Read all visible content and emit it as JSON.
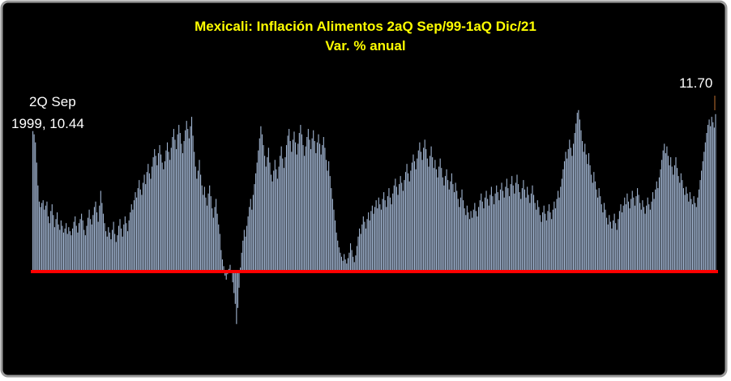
{
  "chart_data": {
    "type": "bar",
    "title": "Mexicali: Inflación Alimentos 2aQ Sep/99-1aQ Dic/21",
    "subtitle": "Var. % anual",
    "annotations": [
      "2Q Sep",
      "1999, 10.44",
      "11.70"
    ],
    "color": "#9fb3cf",
    "zero_line_color": "#ff0000",
    "values": [
      10.44,
      10.2,
      9.6,
      8.1,
      6.4,
      5.2,
      4.8,
      5.1,
      5.3,
      4.6,
      4.9,
      5.2,
      4.1,
      3.6,
      4.5,
      5.0,
      4.2,
      3.3,
      3.9,
      4.4,
      3.5,
      3.1,
      3.8,
      3.4,
      2.9,
      3.2,
      3.6,
      2.8,
      3.3,
      3.0,
      2.7,
      3.2,
      3.7,
      4.1,
      3.4,
      2.9,
      3.6,
      3.9,
      4.3,
      3.8,
      3.1,
      2.7,
      3.4,
      4.0,
      4.6,
      3.9,
      3.5,
      4.2,
      4.8,
      5.2,
      4.4,
      3.7,
      4.9,
      6.0,
      5.1,
      4.3,
      3.6,
      3.0,
      2.6,
      3.3,
      2.9,
      2.4,
      3.1,
      3.7,
      2.8,
      2.2,
      2.7,
      3.4,
      3.9,
      3.2,
      2.6,
      3.5,
      4.1,
      3.6,
      3.0,
      3.8,
      4.4,
      5.0,
      4.6,
      5.3,
      5.9,
      5.5,
      6.2,
      6.8,
      6.1,
      5.7,
      6.6,
      7.2,
      6.5,
      7.4,
      8.0,
      7.3,
      6.9,
      7.8,
      8.5,
      9.1,
      8.6,
      7.9,
      8.8,
      9.4,
      8.7,
      8.1,
      7.6,
      8.2,
      9.0,
      9.6,
      8.9,
      8.3,
      9.2,
      10.0,
      10.6,
      9.8,
      9.1,
      10.2,
      10.9,
      10.3,
      9.5,
      8.8,
      9.7,
      10.5,
      11.2,
      10.6,
      9.9,
      10.8,
      11.5,
      10.1,
      8.9,
      7.8,
      6.9,
      7.5,
      8.3,
      7.2,
      6.4,
      5.7,
      6.3,
      5.5,
      4.9,
      5.8,
      6.4,
      5.6,
      4.7,
      4.0,
      4.8,
      5.4,
      4.3,
      3.5,
      2.8,
      1.6,
      0.9,
      0.4,
      -0.3,
      -0.6,
      -0.2,
      0.2,
      0.5,
      0.1,
      -0.8,
      -1.6,
      -2.4,
      -3.9,
      -2.7,
      -1.2,
      0.3,
      1.4,
      2.3,
      3.1,
      2.6,
      3.4,
      4.1,
      4.8,
      5.4,
      4.6,
      5.7,
      6.5,
      7.3,
      8.1,
      9.0,
      9.9,
      10.8,
      10.2,
      9.4,
      8.6,
      7.8,
      8.5,
      9.2,
      8.1,
      7.2,
      6.7,
      7.5,
      8.3,
      7.6,
      6.9,
      7.8,
      8.6,
      9.3,
      8.4,
      7.7,
      8.5,
      9.4,
      10.1,
      10.6,
      9.7,
      8.9,
      9.8,
      10.4,
      9.6,
      8.7,
      9.5,
      10.3,
      10.9,
      10.2,
      9.4,
      8.6,
      9.3,
      10.0,
      10.6,
      9.8,
      9.1,
      9.9,
      10.5,
      9.7,
      8.8,
      9.6,
      10.2,
      9.5,
      8.7,
      9.4,
      10.0,
      9.2,
      8.3,
      7.5,
      8.2,
      7.1,
      6.2,
      5.4,
      4.6,
      3.8,
      2.9,
      2.3,
      1.8,
      1.4,
      1.1,
      0.8,
      1.3,
      0.9,
      0.6,
      1.0,
      1.4,
      2.1,
      1.6,
      1.1,
      0.7,
      1.2,
      1.9,
      2.6,
      3.2,
      2.8,
      3.5,
      4.1,
      3.7,
      3.2,
      3.9,
      4.4,
      3.8,
      4.5,
      4.9,
      4.3,
      4.8,
      5.3,
      4.7,
      5.5,
      5.0,
      4.6,
      5.4,
      5.9,
      5.3,
      4.8,
      5.6,
      6.2,
      5.5,
      5.0,
      5.8,
      6.4,
      6.9,
      6.3,
      5.7,
      6.5,
      7.1,
      6.6,
      6.0,
      6.8,
      7.4,
      8.0,
      7.3,
      6.7,
      7.5,
      8.1,
      8.7,
      8.2,
      7.6,
      8.4,
      9.0,
      9.6,
      8.9,
      8.3,
      9.2,
      9.8,
      9.1,
      8.4,
      7.8,
      8.6,
      9.3,
      8.5,
      7.7,
      8.3,
      7.6,
      7.0,
      7.8,
      8.4,
      7.7,
      7.0,
      6.4,
      7.1,
      7.6,
      6.8,
      6.1,
      6.7,
      7.3,
      6.5,
      5.9,
      6.6,
      6.0,
      5.4,
      4.8,
      5.5,
      6.1,
      5.3,
      4.7,
      4.2,
      4.9,
      4.4,
      3.9,
      4.5,
      4.0,
      4.6,
      5.1,
      4.5,
      4.1,
      4.8,
      5.3,
      5.8,
      5.2,
      4.7,
      5.5,
      6.0,
      5.4,
      4.9,
      5.7,
      6.3,
      5.6,
      5.0,
      5.8,
      6.4,
      5.9,
      5.3,
      6.1,
      6.6,
      6.0,
      5.5,
      6.3,
      6.9,
      6.2,
      5.6,
      6.5,
      7.1,
      6.4,
      5.8,
      6.6,
      7.2,
      6.5,
      5.9,
      5.4,
      6.2,
      6.8,
      6.1,
      5.5,
      6.3,
      5.7,
      5.1,
      5.8,
      6.4,
      5.7,
      5.1,
      4.6,
      5.3,
      4.8,
      4.2,
      3.7,
      4.4,
      4.9,
      4.3,
      3.8,
      4.5,
      5.0,
      4.4,
      3.9,
      4.6,
      5.2,
      4.7,
      5.4,
      6.0,
      5.5,
      6.3,
      6.9,
      7.6,
      8.2,
      8.9,
      8.4,
      9.1,
      9.8,
      9.2,
      8.6,
      9.5,
      10.3,
      11.0,
      11.8,
      12.0,
      11.3,
      10.5,
      9.7,
      8.9,
      9.5,
      8.7,
      8.0,
      8.8,
      7.9,
      7.2,
      6.6,
      7.4,
      6.7,
      6.1,
      5.5,
      6.2,
      5.6,
      5.0,
      4.4,
      5.1,
      4.6,
      4.0,
      3.5,
      4.2,
      3.7,
      3.2,
      3.8,
      4.3,
      3.6,
      3.1,
      3.9,
      4.5,
      5.0,
      4.4,
      4.9,
      5.5,
      5.0,
      5.8,
      5.2,
      4.7,
      5.4,
      6.0,
      5.5,
      4.9,
      5.6,
      6.2,
      5.7,
      5.1,
      4.6,
      5.3,
      4.8,
      4.3,
      4.9,
      5.5,
      5.0,
      4.6,
      5.2,
      5.9,
      5.4,
      6.1,
      6.7,
      6.2,
      7.0,
      7.6,
      8.3,
      9.0,
      9.5,
      8.8,
      9.3,
      8.6,
      7.9,
      8.5,
      7.8,
      7.2,
      7.9,
      8.5,
      7.7,
      7.1,
      6.6,
      7.3,
      6.8,
      6.2,
      5.7,
      6.3,
      5.8,
      5.2,
      5.9,
      5.4,
      5.0,
      5.6,
      5.1,
      4.8,
      5.5,
      6.1,
      6.8,
      7.5,
      8.2,
      8.9,
      9.6,
      10.3,
      10.9,
      11.3,
      10.8,
      11.5,
      11.1,
      10.7,
      11.7
    ]
  }
}
